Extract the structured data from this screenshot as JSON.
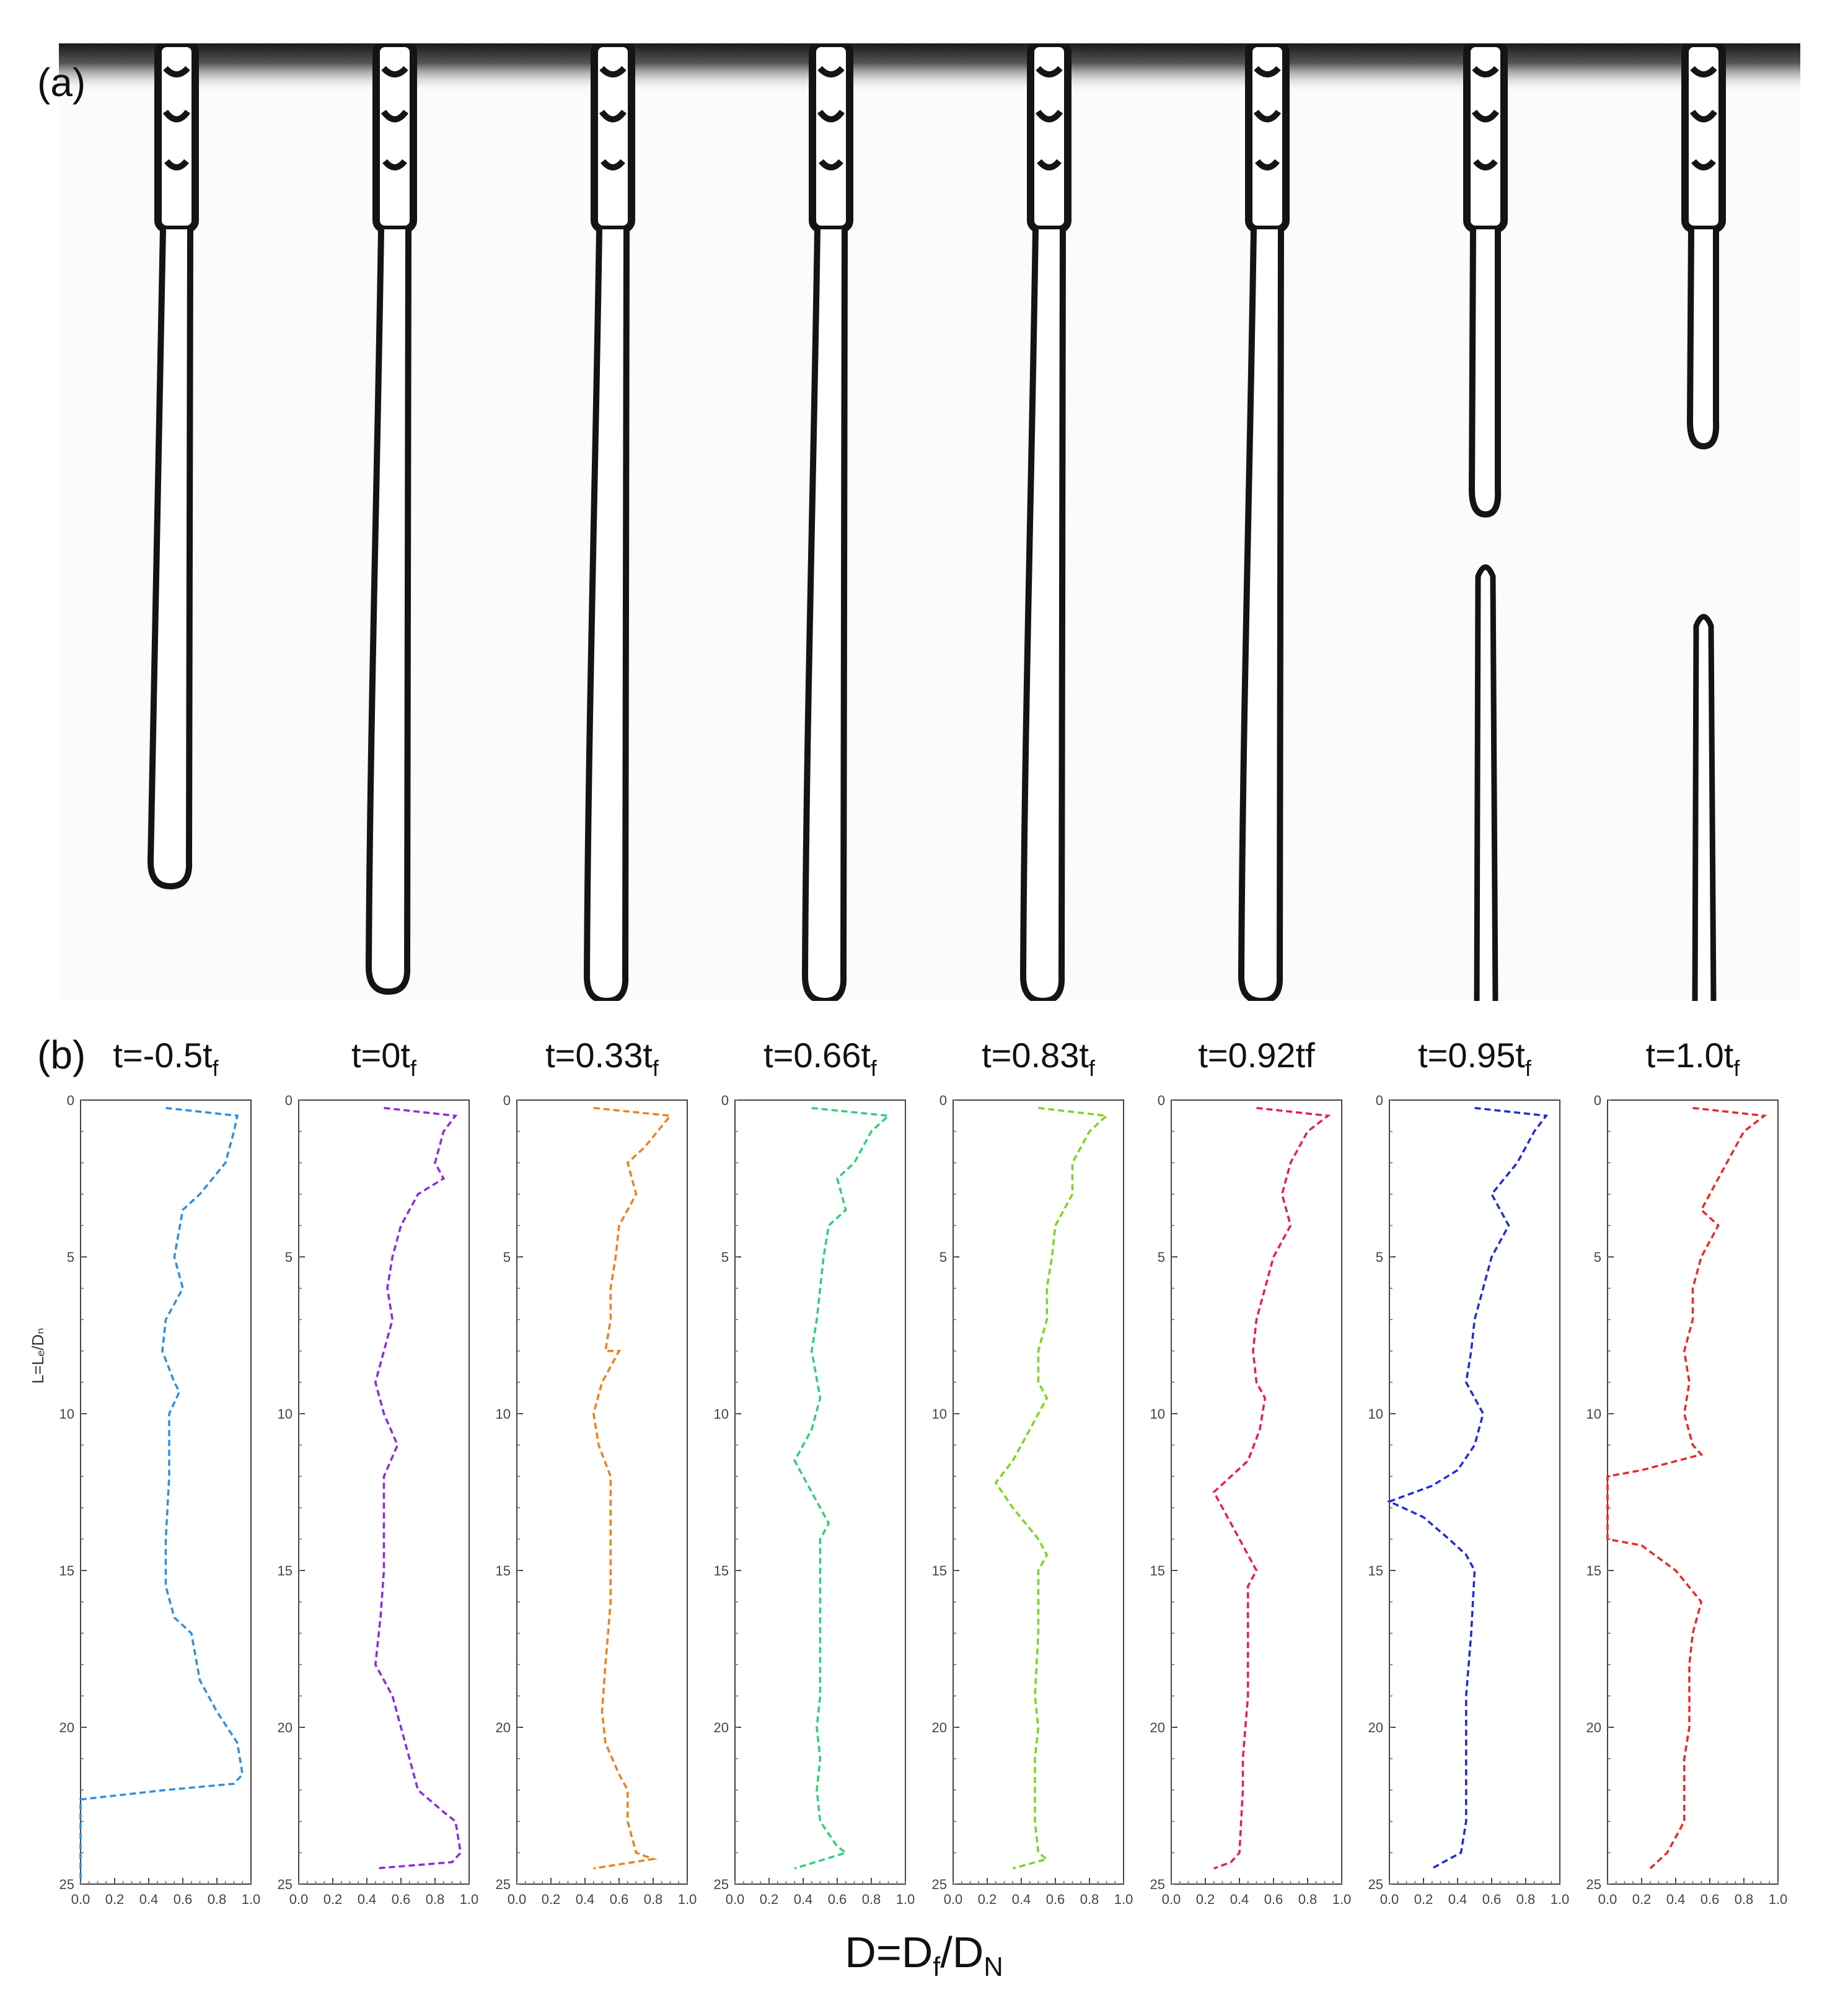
{
  "panel_a": {
    "label": "(a)",
    "frames": 8,
    "liquid_color": "#141414",
    "background_color": "#fbfbfb"
  },
  "panel_b": {
    "label": "(b)"
  },
  "x_axis_label": {
    "main": "D=D",
    "sub1": "f",
    "mid": "/D",
    "sub2": "N"
  },
  "chart_data": [
    {
      "type": "line",
      "title_main": "t=-0.5t",
      "title_sub": "f",
      "color": "#2f8fe0",
      "ylabel": "L=Lₑ/Dₙ",
      "xlim": [
        0,
        1.0
      ],
      "ylim": [
        25,
        0
      ],
      "x_ticks": [
        "0.0",
        "0.2",
        "0.4",
        "0.6",
        "0.8",
        "1.0"
      ],
      "y_ticks": [
        "0",
        "5",
        "10",
        "15",
        "20",
        "25"
      ],
      "points": [
        [
          0.5,
          0.25
        ],
        [
          0.92,
          0.5
        ],
        [
          0.9,
          1
        ],
        [
          0.85,
          2
        ],
        [
          0.7,
          3
        ],
        [
          0.6,
          3.5
        ],
        [
          0.55,
          5
        ],
        [
          0.6,
          6
        ],
        [
          0.5,
          7
        ],
        [
          0.48,
          8
        ],
        [
          0.55,
          9
        ],
        [
          0.58,
          9.3
        ],
        [
          0.52,
          10
        ],
        [
          0.52,
          12
        ],
        [
          0.5,
          14
        ],
        [
          0.5,
          15.5
        ],
        [
          0.55,
          16.5
        ],
        [
          0.65,
          17
        ],
        [
          0.7,
          18.5
        ],
        [
          0.8,
          19.5
        ],
        [
          0.92,
          20.5
        ],
        [
          0.95,
          21.5
        ],
        [
          0.9,
          21.8
        ],
        [
          0.5,
          22
        ],
        [
          0.0,
          22.3
        ],
        [
          0.0,
          25
        ]
      ]
    },
    {
      "type": "line",
      "title_main": "t=0t",
      "title_sub": "f",
      "color": "#8a2be2",
      "ylabel": "",
      "xlim": [
        0,
        1.0
      ],
      "ylim": [
        25,
        0
      ],
      "x_ticks": [
        "0.0",
        "0.2",
        "0.4",
        "0.6",
        "0.8",
        "1.0"
      ],
      "y_ticks": [
        "0",
        "5",
        "10",
        "15",
        "20",
        "25"
      ],
      "points": [
        [
          0.5,
          0.25
        ],
        [
          0.92,
          0.5
        ],
        [
          0.85,
          1
        ],
        [
          0.8,
          2
        ],
        [
          0.85,
          2.5
        ],
        [
          0.7,
          3
        ],
        [
          0.6,
          4
        ],
        [
          0.55,
          5
        ],
        [
          0.52,
          6
        ],
        [
          0.55,
          7
        ],
        [
          0.5,
          8
        ],
        [
          0.45,
          9
        ],
        [
          0.5,
          10
        ],
        [
          0.58,
          11
        ],
        [
          0.5,
          12
        ],
        [
          0.5,
          15
        ],
        [
          0.48,
          16.5
        ],
        [
          0.45,
          18
        ],
        [
          0.55,
          19
        ],
        [
          0.6,
          20
        ],
        [
          0.65,
          21
        ],
        [
          0.7,
          22
        ],
        [
          0.85,
          22.7
        ],
        [
          0.92,
          23
        ],
        [
          0.95,
          24
        ],
        [
          0.9,
          24.3
        ],
        [
          0.45,
          24.5
        ]
      ]
    },
    {
      "type": "line",
      "title_main": "t=0.33t",
      "title_sub": "f",
      "color": "#f07f1a",
      "ylabel": "",
      "xlim": [
        0,
        1.0
      ],
      "ylim": [
        25,
        0
      ],
      "x_ticks": [
        "0.0",
        "0.2",
        "0.4",
        "0.6",
        "0.8",
        "1.0"
      ],
      "y_ticks": [
        "0",
        "5",
        "10",
        "15",
        "20",
        "25"
      ],
      "points": [
        [
          0.45,
          0.25
        ],
        [
          0.9,
          0.5
        ],
        [
          0.75,
          1.5
        ],
        [
          0.65,
          2
        ],
        [
          0.7,
          3
        ],
        [
          0.6,
          4
        ],
        [
          0.58,
          5
        ],
        [
          0.55,
          6
        ],
        [
          0.55,
          7
        ],
        [
          0.52,
          8
        ],
        [
          0.6,
          8
        ],
        [
          0.5,
          9
        ],
        [
          0.45,
          10
        ],
        [
          0.48,
          11
        ],
        [
          0.55,
          12
        ],
        [
          0.55,
          14
        ],
        [
          0.55,
          16
        ],
        [
          0.52,
          18
        ],
        [
          0.5,
          19.5
        ],
        [
          0.52,
          20.5
        ],
        [
          0.6,
          21.5
        ],
        [
          0.65,
          22
        ],
        [
          0.65,
          23
        ],
        [
          0.7,
          24
        ],
        [
          0.8,
          24.2
        ],
        [
          0.45,
          24.5
        ]
      ]
    },
    {
      "type": "line",
      "title_main": "t=0.66t",
      "title_sub": "f",
      "color": "#2ecf7a",
      "ylabel": "",
      "xlim": [
        0,
        1.0
      ],
      "ylim": [
        25,
        0
      ],
      "x_ticks": [
        "0.0",
        "0.2",
        "0.4",
        "0.6",
        "0.8",
        "1.0"
      ],
      "y_ticks": [
        "0",
        "5",
        "10",
        "15",
        "20",
        "25"
      ],
      "points": [
        [
          0.45,
          0.25
        ],
        [
          0.9,
          0.5
        ],
        [
          0.8,
          1
        ],
        [
          0.7,
          2
        ],
        [
          0.6,
          2.5
        ],
        [
          0.65,
          3.5
        ],
        [
          0.55,
          4
        ],
        [
          0.52,
          5
        ],
        [
          0.5,
          6
        ],
        [
          0.48,
          7
        ],
        [
          0.45,
          8
        ],
        [
          0.5,
          9.5
        ],
        [
          0.45,
          10.5
        ],
        [
          0.35,
          11.5
        ],
        [
          0.45,
          12.5
        ],
        [
          0.55,
          13.5
        ],
        [
          0.5,
          14
        ],
        [
          0.5,
          17
        ],
        [
          0.5,
          19
        ],
        [
          0.48,
          20
        ],
        [
          0.5,
          21
        ],
        [
          0.48,
          22
        ],
        [
          0.5,
          23
        ],
        [
          0.6,
          23.8
        ],
        [
          0.65,
          24
        ],
        [
          0.35,
          24.5
        ]
      ]
    },
    {
      "type": "line",
      "title_main": "t=0.83t",
      "title_sub": "f",
      "color": "#7ed321",
      "ylabel": "",
      "xlim": [
        0,
        1.0
      ],
      "ylim": [
        25,
        0
      ],
      "x_ticks": [
        "0.0",
        "0.2",
        "0.4",
        "0.6",
        "0.8",
        "1.0"
      ],
      "y_ticks": [
        "0",
        "5",
        "10",
        "15",
        "20",
        "25"
      ],
      "points": [
        [
          0.5,
          0.25
        ],
        [
          0.9,
          0.5
        ],
        [
          0.8,
          1
        ],
        [
          0.7,
          2
        ],
        [
          0.7,
          3
        ],
        [
          0.65,
          3.5
        ],
        [
          0.6,
          4
        ],
        [
          0.58,
          5
        ],
        [
          0.55,
          6
        ],
        [
          0.55,
          7
        ],
        [
          0.5,
          8
        ],
        [
          0.5,
          9
        ],
        [
          0.55,
          9.5
        ],
        [
          0.45,
          10.5
        ],
        [
          0.35,
          11.5
        ],
        [
          0.25,
          12.2
        ],
        [
          0.35,
          13
        ],
        [
          0.5,
          14
        ],
        [
          0.55,
          14.5
        ],
        [
          0.5,
          15
        ],
        [
          0.5,
          17
        ],
        [
          0.48,
          19
        ],
        [
          0.5,
          20
        ],
        [
          0.48,
          21
        ],
        [
          0.48,
          23
        ],
        [
          0.5,
          24
        ],
        [
          0.55,
          24.2
        ],
        [
          0.35,
          24.5
        ]
      ]
    },
    {
      "type": "line",
      "title_main": "t=0.92tf",
      "title_sub": "",
      "color": "#e6196b",
      "ylabel": "",
      "xlim": [
        0,
        1.0
      ],
      "ylim": [
        25,
        0
      ],
      "x_ticks": [
        "0.0",
        "0.2",
        "0.4",
        "0.6",
        "0.8",
        "1.0"
      ],
      "y_ticks": [
        "0",
        "5",
        "10",
        "15",
        "20",
        "25"
      ],
      "points": [
        [
          0.5,
          0.25
        ],
        [
          0.92,
          0.5
        ],
        [
          0.8,
          1
        ],
        [
          0.7,
          2
        ],
        [
          0.65,
          3
        ],
        [
          0.7,
          4
        ],
        [
          0.6,
          5
        ],
        [
          0.55,
          6
        ],
        [
          0.5,
          7
        ],
        [
          0.48,
          8
        ],
        [
          0.5,
          9
        ],
        [
          0.55,
          9.5
        ],
        [
          0.52,
          10.5
        ],
        [
          0.45,
          11.5
        ],
        [
          0.35,
          12
        ],
        [
          0.25,
          12.5
        ],
        [
          0.35,
          13.5
        ],
        [
          0.45,
          14.5
        ],
        [
          0.5,
          15
        ],
        [
          0.45,
          15.5
        ],
        [
          0.45,
          19
        ],
        [
          0.42,
          21
        ],
        [
          0.42,
          22
        ],
        [
          0.4,
          24
        ],
        [
          0.35,
          24.3
        ],
        [
          0.25,
          24.5
        ]
      ]
    },
    {
      "type": "line",
      "title_main": "t=0.95t",
      "title_sub": "f",
      "color": "#1f2bd6",
      "ylabel": "",
      "xlim": [
        0,
        1.0
      ],
      "ylim": [
        25,
        0
      ],
      "x_ticks": [
        "0.0",
        "0.2",
        "0.4",
        "0.6",
        "0.8",
        "1.0"
      ],
      "y_ticks": [
        "0",
        "5",
        "10",
        "15",
        "20",
        "25"
      ],
      "points": [
        [
          0.5,
          0.25
        ],
        [
          0.92,
          0.5
        ],
        [
          0.85,
          1
        ],
        [
          0.75,
          2
        ],
        [
          0.6,
          3
        ],
        [
          0.65,
          3.5
        ],
        [
          0.7,
          4
        ],
        [
          0.6,
          5
        ],
        [
          0.55,
          6
        ],
        [
          0.5,
          7
        ],
        [
          0.48,
          8
        ],
        [
          0.45,
          9
        ],
        [
          0.55,
          10
        ],
        [
          0.5,
          11
        ],
        [
          0.4,
          11.8
        ],
        [
          0.25,
          12.3
        ],
        [
          0.0,
          12.8
        ],
        [
          0.2,
          13.3
        ],
        [
          0.35,
          14
        ],
        [
          0.45,
          14.5
        ],
        [
          0.5,
          15
        ],
        [
          0.48,
          17
        ],
        [
          0.45,
          19
        ],
        [
          0.45,
          21
        ],
        [
          0.45,
          23
        ],
        [
          0.42,
          24
        ],
        [
          0.35,
          24.2
        ],
        [
          0.25,
          24.5
        ]
      ]
    },
    {
      "type": "line",
      "title_main": "t=1.0t",
      "title_sub": "f",
      "color": "#e8282b",
      "ylabel": "",
      "xlim": [
        0,
        1.0
      ],
      "ylim": [
        25,
        0
      ],
      "x_ticks": [
        "0.0",
        "0.2",
        "0.4",
        "0.6",
        "0.8",
        "1.0"
      ],
      "y_ticks": [
        "0",
        "5",
        "10",
        "15",
        "20",
        "25"
      ],
      "points": [
        [
          0.5,
          0.25
        ],
        [
          0.92,
          0.5
        ],
        [
          0.8,
          1
        ],
        [
          0.7,
          2
        ],
        [
          0.6,
          3
        ],
        [
          0.55,
          3.5
        ],
        [
          0.65,
          4
        ],
        [
          0.55,
          5
        ],
        [
          0.5,
          6
        ],
        [
          0.5,
          7
        ],
        [
          0.45,
          8
        ],
        [
          0.48,
          9
        ],
        [
          0.45,
          10
        ],
        [
          0.5,
          11
        ],
        [
          0.55,
          11.3
        ],
        [
          0.2,
          11.8
        ],
        [
          0.0,
          12
        ],
        [
          0.0,
          14
        ],
        [
          0.2,
          14.2
        ],
        [
          0.4,
          15
        ],
        [
          0.55,
          16
        ],
        [
          0.5,
          17
        ],
        [
          0.48,
          18
        ],
        [
          0.48,
          20
        ],
        [
          0.45,
          21
        ],
        [
          0.45,
          23
        ],
        [
          0.35,
          24
        ],
        [
          0.25,
          24.5
        ]
      ]
    }
  ]
}
